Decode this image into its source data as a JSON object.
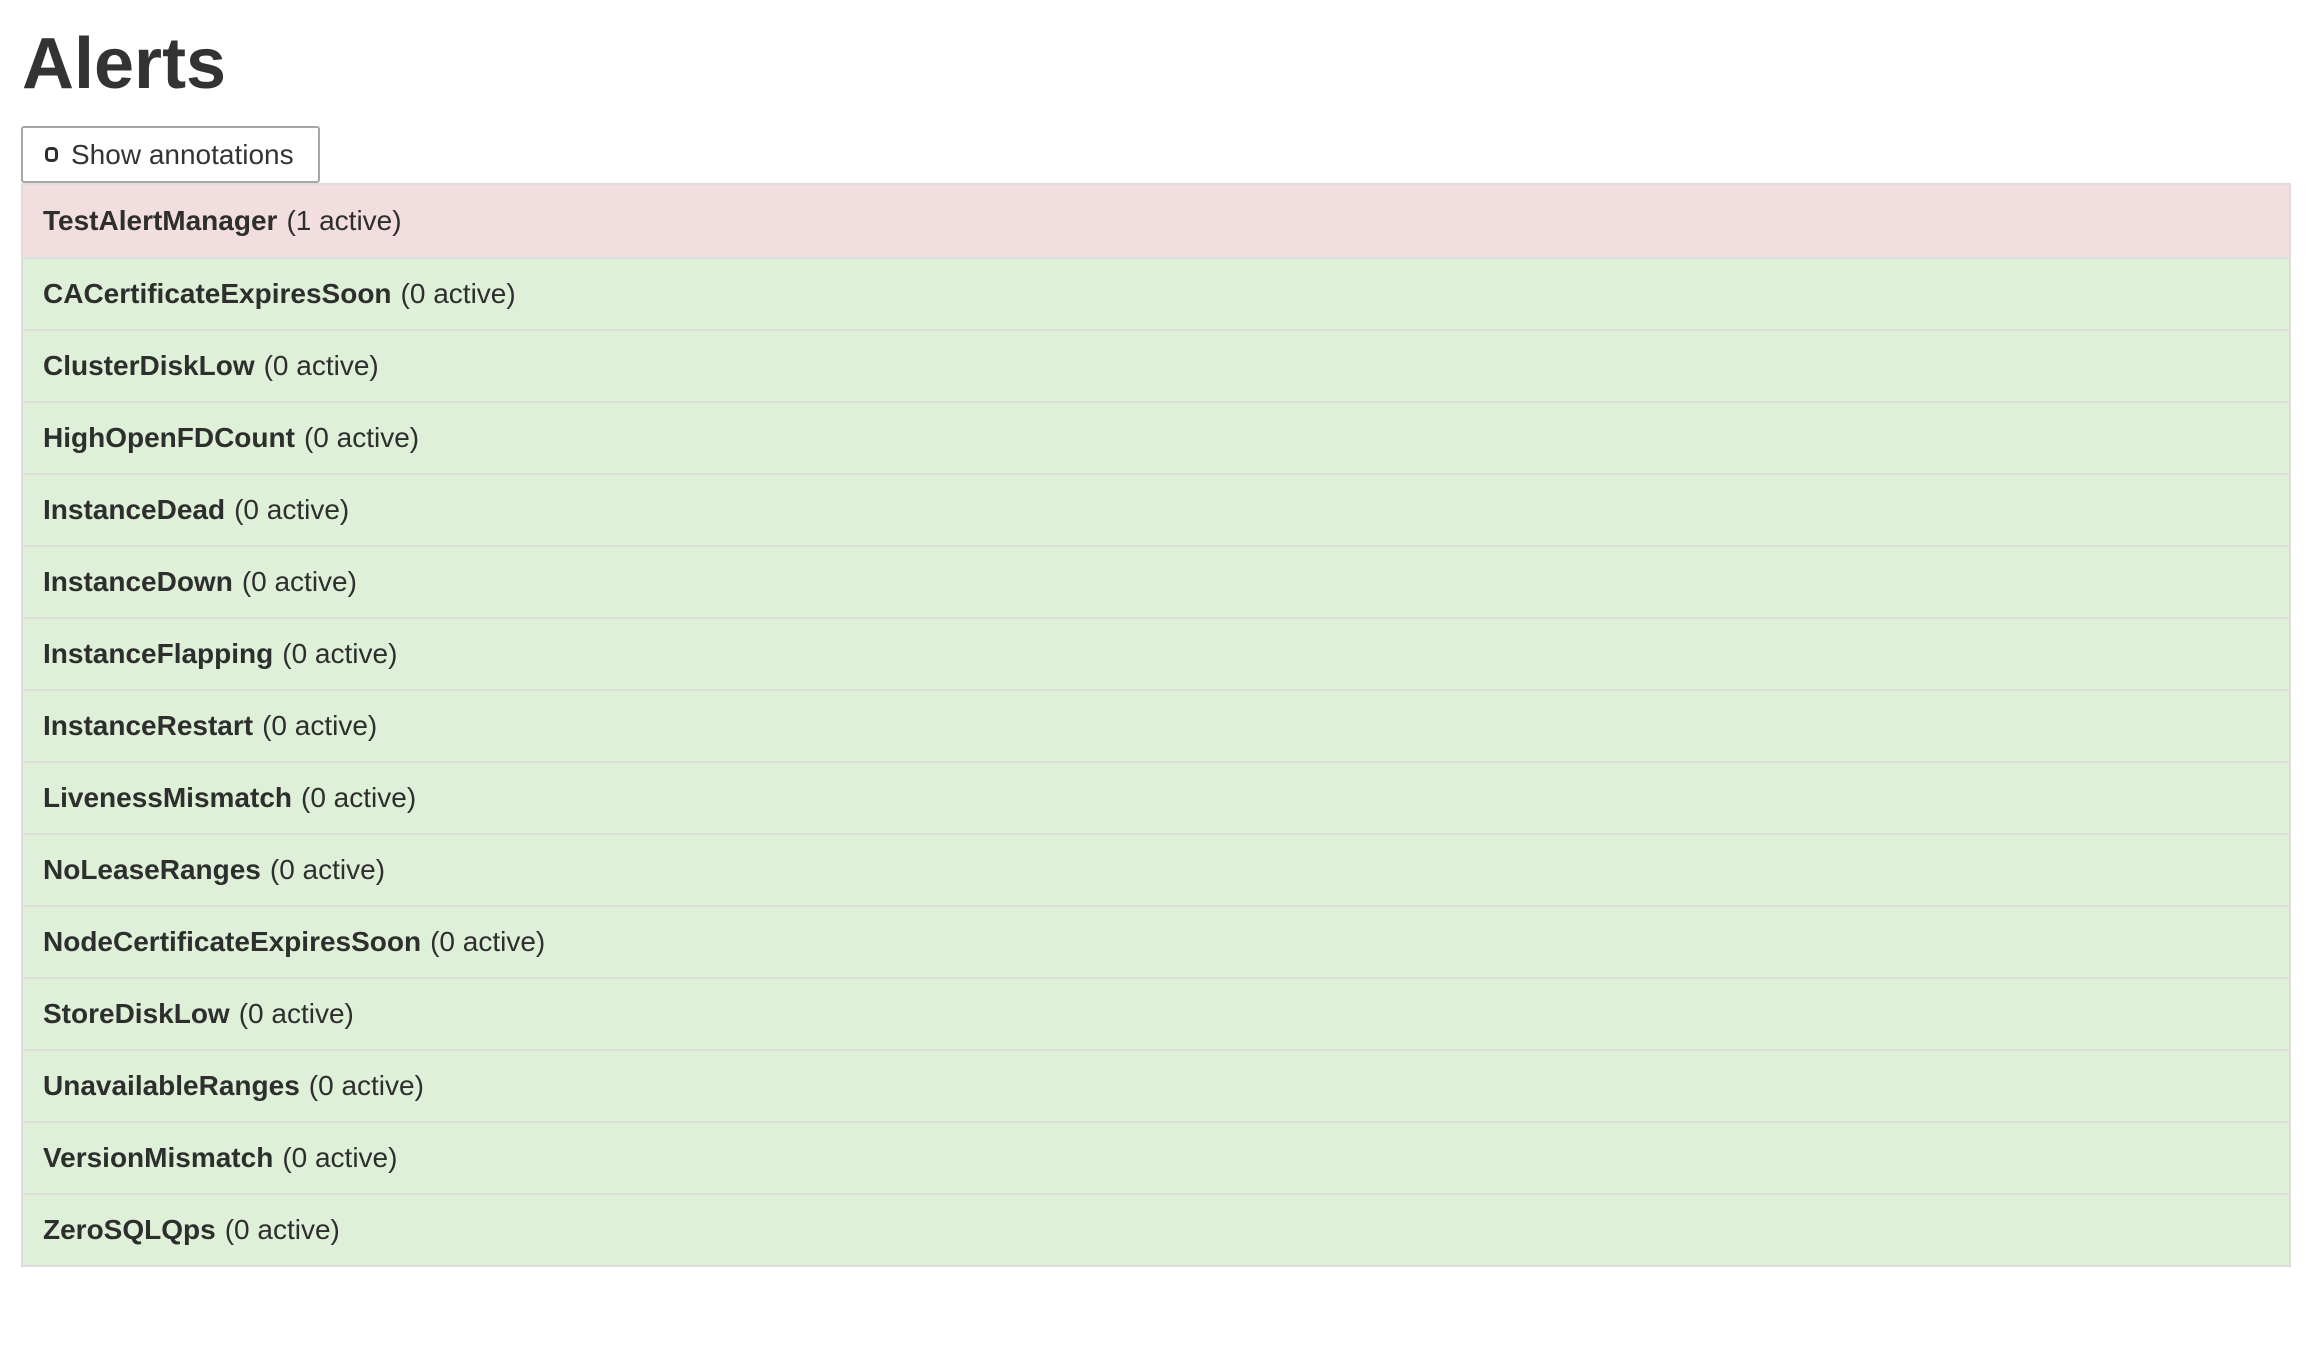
{
  "page": {
    "title": "Alerts"
  },
  "toolbar": {
    "show_annotations_label": "Show annotations",
    "annotations_checked": false
  },
  "colors": {
    "danger_bg": "#f2dede",
    "success_bg": "#dff0d8",
    "table_border": "#dddddd",
    "text": "#333333",
    "button_border": "#a6a6a6"
  },
  "alerts": [
    {
      "name": "TestAlertManager",
      "active_count": 1,
      "count_label": "(1 active)",
      "state": "danger"
    },
    {
      "name": "CACertificateExpiresSoon",
      "active_count": 0,
      "count_label": "(0 active)",
      "state": "success"
    },
    {
      "name": "ClusterDiskLow",
      "active_count": 0,
      "count_label": "(0 active)",
      "state": "success"
    },
    {
      "name": "HighOpenFDCount",
      "active_count": 0,
      "count_label": "(0 active)",
      "state": "success"
    },
    {
      "name": "InstanceDead",
      "active_count": 0,
      "count_label": "(0 active)",
      "state": "success"
    },
    {
      "name": "InstanceDown",
      "active_count": 0,
      "count_label": "(0 active)",
      "state": "success"
    },
    {
      "name": "InstanceFlapping",
      "active_count": 0,
      "count_label": "(0 active)",
      "state": "success"
    },
    {
      "name": "InstanceRestart",
      "active_count": 0,
      "count_label": "(0 active)",
      "state": "success"
    },
    {
      "name": "LivenessMismatch",
      "active_count": 0,
      "count_label": "(0 active)",
      "state": "success"
    },
    {
      "name": "NoLeaseRanges",
      "active_count": 0,
      "count_label": "(0 active)",
      "state": "success"
    },
    {
      "name": "NodeCertificateExpiresSoon",
      "active_count": 0,
      "count_label": "(0 active)",
      "state": "success"
    },
    {
      "name": "StoreDiskLow",
      "active_count": 0,
      "count_label": "(0 active)",
      "state": "success"
    },
    {
      "name": "UnavailableRanges",
      "active_count": 0,
      "count_label": "(0 active)",
      "state": "success"
    },
    {
      "name": "VersionMismatch",
      "active_count": 0,
      "count_label": "(0 active)",
      "state": "success"
    },
    {
      "name": "ZeroSQLQps",
      "active_count": 0,
      "count_label": "(0 active)",
      "state": "success"
    }
  ]
}
